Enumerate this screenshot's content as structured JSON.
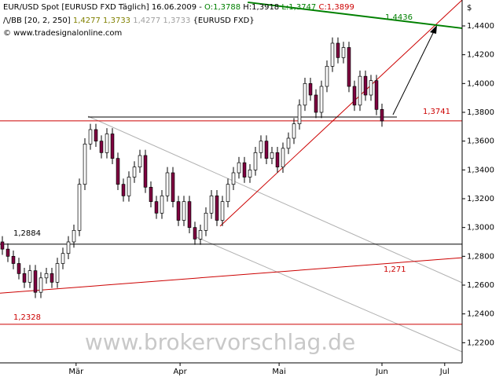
{
  "chart_data": {
    "type": "candlestick",
    "header": {
      "line1": [
        "EUR/USD Spot [EURUSD FXD  Täglich] 16.06.2009 - ",
        "O:1,3788",
        " H:1,3918",
        " L:1,3747",
        " C:1,3899"
      ],
      "line2": [
        "/\\/BB [20, 2, 250]",
        " 1,4277",
        " 1,3733",
        " 1,4277",
        " 1,3733",
        " {EURUSD FXD}"
      ],
      "line3": "© www.tradesignalonline.com"
    },
    "currency": "$",
    "watermark": "www.brokervorschlag.de",
    "up_color": "#ffffff",
    "down_color": "#800040",
    "xlim": [
      -0.43,
      83.57
    ],
    "xticks": [
      {
        "value": 13.4,
        "label": "Mär"
      },
      {
        "value": 32.3,
        "label": "Apr"
      },
      {
        "value": 50.3,
        "label": "Mai"
      },
      {
        "value": 69,
        "label": "Jun"
      },
      {
        "value": 80.4,
        "label": "Jul"
      }
    ],
    "ylim": [
      1.206,
      1.458
    ],
    "yticks": [
      {
        "value": 1.22,
        "label": "1,2200"
      },
      {
        "value": 1.24,
        "label": "1,2400"
      },
      {
        "value": 1.26,
        "label": "1,2600"
      },
      {
        "value": 1.28,
        "label": "1,2800"
      },
      {
        "value": 1.3,
        "label": "1,3000"
      },
      {
        "value": 1.32,
        "label": "1,3200"
      },
      {
        "value": 1.34,
        "label": "1,3400"
      },
      {
        "value": 1.36,
        "label": "1,3600"
      },
      {
        "value": 1.38,
        "label": "1,3800"
      },
      {
        "value": 1.4,
        "label": "1,4000"
      },
      {
        "value": 1.42,
        "label": "1,4200"
      },
      {
        "value": 1.44,
        "label": "1,4400"
      }
    ],
    "open": [
      1.29,
      1.285,
      1.28,
      1.275,
      1.268,
      1.262,
      1.27,
      1.255,
      1.265,
      1.268,
      1.262,
      1.275,
      1.282,
      1.29,
      1.298,
      1.33,
      1.358,
      1.368,
      1.36,
      1.352,
      1.365,
      1.348,
      1.33,
      1.322,
      1.335,
      1.342,
      1.35,
      1.328,
      1.318,
      1.31,
      1.322,
      1.338,
      1.318,
      1.305,
      1.318,
      1.3,
      1.292,
      1.298,
      1.31,
      1.322,
      1.305,
      1.318,
      1.33,
      1.338,
      1.345,
      1.335,
      1.34,
      1.352,
      1.36,
      1.348,
      1.352,
      1.342,
      1.355,
      1.362,
      1.372,
      1.385,
      1.4,
      1.392,
      1.38,
      1.398,
      1.412,
      1.428,
      1.418,
      1.425,
      1.398,
      1.385,
      1.405,
      1.392,
      1.402,
      1.382
    ],
    "high": [
      1.294,
      1.289,
      1.284,
      1.279,
      1.272,
      1.274,
      1.274,
      1.269,
      1.272,
      1.272,
      1.279,
      1.286,
      1.294,
      1.302,
      1.334,
      1.362,
      1.372,
      1.372,
      1.364,
      1.369,
      1.369,
      1.352,
      1.334,
      1.339,
      1.346,
      1.354,
      1.354,
      1.332,
      1.322,
      1.326,
      1.342,
      1.342,
      1.322,
      1.322,
      1.322,
      1.304,
      1.302,
      1.314,
      1.326,
      1.326,
      1.322,
      1.334,
      1.342,
      1.349,
      1.349,
      1.344,
      1.356,
      1.364,
      1.364,
      1.356,
      1.356,
      1.359,
      1.366,
      1.376,
      1.389,
      1.404,
      1.404,
      1.396,
      1.402,
      1.416,
      1.432,
      1.432,
      1.429,
      1.429,
      1.402,
      1.409,
      1.409,
      1.406,
      1.406,
      1.386
    ],
    "low": [
      1.281,
      1.276,
      1.271,
      1.264,
      1.258,
      1.258,
      1.251,
      1.251,
      1.261,
      1.258,
      1.258,
      1.271,
      1.278,
      1.286,
      1.294,
      1.326,
      1.354,
      1.356,
      1.348,
      1.348,
      1.344,
      1.326,
      1.318,
      1.318,
      1.331,
      1.338,
      1.324,
      1.314,
      1.306,
      1.306,
      1.318,
      1.314,
      1.301,
      1.301,
      1.296,
      1.288,
      1.288,
      1.294,
      1.306,
      1.301,
      1.301,
      1.314,
      1.326,
      1.334,
      1.331,
      1.331,
      1.336,
      1.348,
      1.344,
      1.344,
      1.338,
      1.338,
      1.351,
      1.358,
      1.368,
      1.381,
      1.388,
      1.376,
      1.376,
      1.394,
      1.408,
      1.414,
      1.414,
      1.394,
      1.381,
      1.381,
      1.388,
      1.388,
      1.378,
      1.37
    ],
    "close": [
      1.285,
      1.28,
      1.275,
      1.268,
      1.262,
      1.27,
      1.255,
      1.265,
      1.268,
      1.262,
      1.275,
      1.282,
      1.29,
      1.298,
      1.33,
      1.358,
      1.368,
      1.36,
      1.352,
      1.365,
      1.348,
      1.33,
      1.322,
      1.335,
      1.342,
      1.35,
      1.328,
      1.318,
      1.31,
      1.322,
      1.338,
      1.318,
      1.305,
      1.318,
      1.3,
      1.292,
      1.298,
      1.31,
      1.322,
      1.305,
      1.318,
      1.33,
      1.338,
      1.345,
      1.335,
      1.34,
      1.352,
      1.36,
      1.348,
      1.352,
      1.342,
      1.355,
      1.362,
      1.372,
      1.385,
      1.4,
      1.392,
      1.38,
      1.398,
      1.412,
      1.428,
      1.418,
      1.425,
      1.398,
      1.385,
      1.405,
      1.392,
      1.402,
      1.382,
      1.374
    ],
    "lines": [
      {
        "label": "1,4436",
        "color": "#008000",
        "x": [
          44.6,
          83.57
        ],
        "y": [
          1.4564,
          1.4384
        ]
      },
      {
        "label": "1,3741",
        "color": "#cc0000",
        "x": [
          -0.43,
          83.57
        ],
        "y": [
          1.3741,
          1.3741
        ]
      },
      {
        "label": "1,2884",
        "color": "#000000",
        "x": [
          -0.43,
          83.57
        ],
        "y": [
          1.2884,
          1.2884
        ]
      },
      {
        "label": "1,271",
        "color": "#cc0000",
        "x": [
          -0.43,
          83.57
        ],
        "y": [
          1.2544,
          1.279
        ]
      },
      {
        "label": "1,2328",
        "color": "#cc0000",
        "x": [
          -0.43,
          83.57
        ],
        "y": [
          1.2328,
          1.2328
        ]
      }
    ]
  }
}
